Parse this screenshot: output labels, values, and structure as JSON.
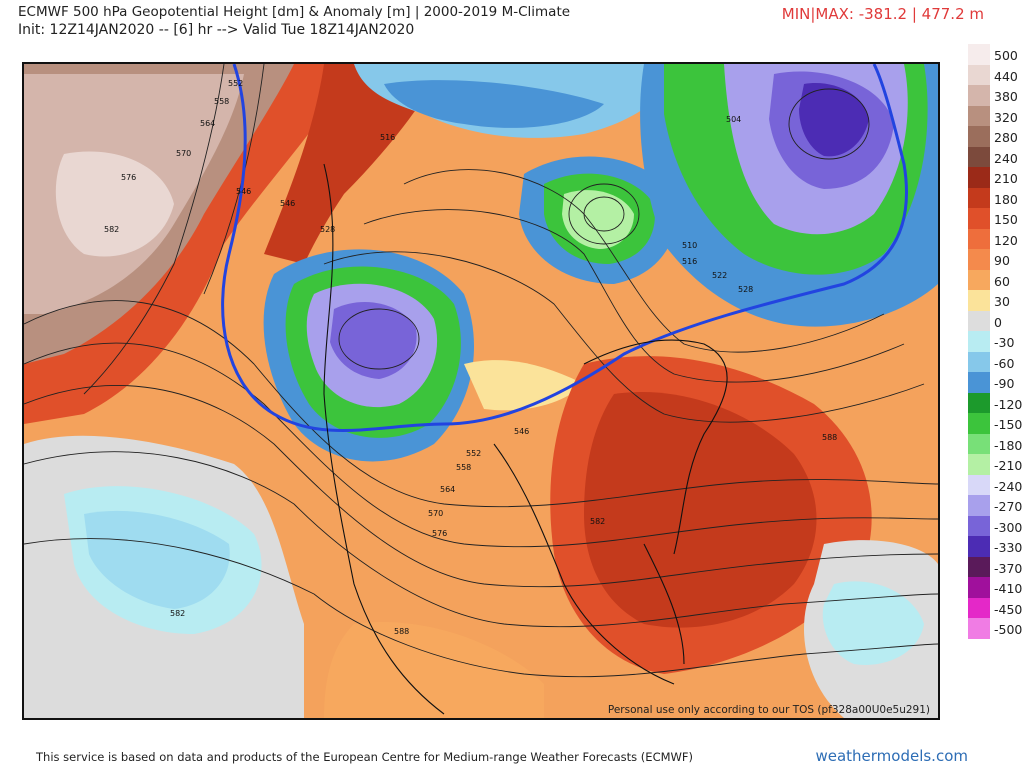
{
  "header": {
    "title_line1": "ECMWF 500 hPa Geopotential Height [dm] & Anomaly [m] | 2000-2019 M-Climate",
    "title_line2": "Init: 12Z14JAN2020 -- [6] hr --> Valid Tue 18Z14JAN2020",
    "minmax": "MIN|MAX: -381.2 | 477.2 m"
  },
  "map": {
    "tos_note": "Personal use only according to our TOS (pf328a00U0e5u291)",
    "contour_labels": [
      "552",
      "558",
      "564",
      "570",
      "576",
      "582",
      "528",
      "516",
      "504",
      "510",
      "516",
      "522",
      "528",
      "546",
      "552",
      "558",
      "564",
      "570",
      "576",
      "582",
      "588",
      "582",
      "588",
      "546",
      "546"
    ]
  },
  "legend": {
    "items": [
      {
        "label": "500",
        "color": "#f6ecec"
      },
      {
        "label": "440",
        "color": "#e9d7d2"
      },
      {
        "label": "380",
        "color": "#d4b5ab"
      },
      {
        "label": "320",
        "color": "#b8907f"
      },
      {
        "label": "280",
        "color": "#9b6e5c"
      },
      {
        "label": "240",
        "color": "#7c4a3c"
      },
      {
        "label": "210",
        "color": "#9b2a18"
      },
      {
        "label": "180",
        "color": "#c43a1c"
      },
      {
        "label": "150",
        "color": "#e0502a"
      },
      {
        "label": "120",
        "color": "#ee6e3c"
      },
      {
        "label": "90",
        "color": "#f48a4c"
      },
      {
        "label": "60",
        "color": "#f7a85e"
      },
      {
        "label": "30",
        "color": "#fbe39a"
      },
      {
        "label": "0",
        "color": "#dddddd"
      },
      {
        "label": "-30",
        "color": "#b8ecf2"
      },
      {
        "label": "-60",
        "color": "#86c8ea"
      },
      {
        "label": "-90",
        "color": "#4a94d6"
      },
      {
        "label": "-120",
        "color": "#1c9a2c"
      },
      {
        "label": "-150",
        "color": "#3cc43c"
      },
      {
        "label": "-180",
        "color": "#78e078"
      },
      {
        "label": "-210",
        "color": "#b4f0a4"
      },
      {
        "label": "-240",
        "color": "#d8d8f8"
      },
      {
        "label": "-270",
        "color": "#a8a0ec"
      },
      {
        "label": "-300",
        "color": "#7864d8"
      },
      {
        "label": "-330",
        "color": "#4c2cb4"
      },
      {
        "label": "-370",
        "color": "#5a1a5a"
      },
      {
        "label": "-410",
        "color": "#a0109c"
      },
      {
        "label": "-450",
        "color": "#e428c8"
      },
      {
        "label": "-500",
        "color": "#f07ce4"
      }
    ]
  },
  "footer": {
    "attribution": "This service is based on data and products of the European Centre for Medium-range Weather Forecasts (ECMWF)",
    "site": "weathermodels.com"
  }
}
